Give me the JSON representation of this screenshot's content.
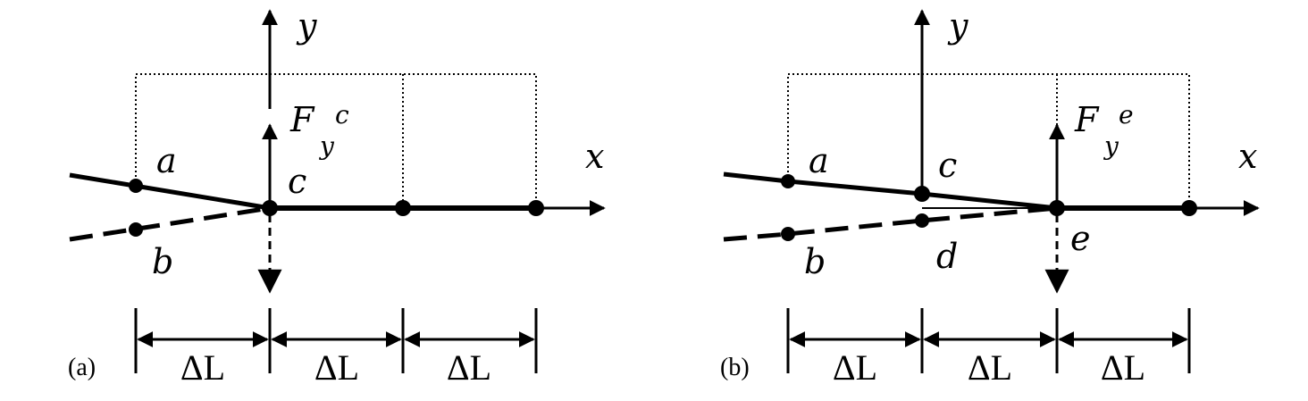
{
  "panel_a": {
    "label": "(a)",
    "axis_x": "x",
    "axis_y": "y",
    "force_main": "F",
    "force_sub": "y",
    "force_sup": "c",
    "node_a": "a",
    "node_b": "b",
    "node_c": "c",
    "dims": [
      "ΔL",
      "ΔL",
      "ΔL"
    ]
  },
  "panel_b": {
    "label": "(b)",
    "axis_x": "x",
    "axis_y": "y",
    "force_main": "F",
    "force_sub": "y",
    "force_sup": "e",
    "node_a": "a",
    "node_b": "b",
    "node_c": "c",
    "node_d": "d",
    "node_e": "e",
    "dims": [
      "ΔL",
      "ΔL",
      "ΔL"
    ]
  },
  "colors": {
    "ink": "#000000",
    "background": "#ffffff"
  }
}
